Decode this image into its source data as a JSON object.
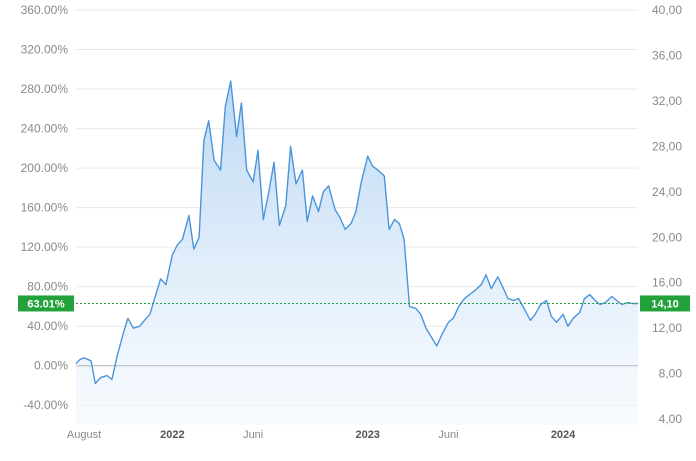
{
  "colors": {
    "line": "#4a95dc",
    "area_top": "#b8d6f3",
    "area_bottom": "#f3f8fe",
    "grid": "#e9e9e9",
    "zero_line": "#b5b5b5",
    "current_badge": "#23a13a",
    "current_line": "#23a13a"
  },
  "chart_data": {
    "type": "area",
    "grid": true,
    "y_left": {
      "unit": "percent",
      "range": [
        -60,
        360
      ],
      "ticks": [
        -40,
        0,
        40,
        80,
        120,
        160,
        200,
        240,
        280,
        320,
        360
      ],
      "tick_labels": [
        "-40.00%",
        "0.00%",
        "40.00%",
        "80.00%",
        "120.00%",
        "160.00%",
        "200.00%",
        "240.00%",
        "280.00%",
        "320.00%",
        "360.00%"
      ]
    },
    "y_right": {
      "range": [
        3.48,
        40.0
      ],
      "ticks": [
        4,
        8,
        12,
        16,
        20,
        24,
        28,
        32,
        36,
        40
      ],
      "tick_labels": [
        "4,00",
        "8,00",
        "12,00",
        "16,00",
        "20,00",
        "24,00",
        "28,00",
        "32,00",
        "36,00",
        "40,00"
      ]
    },
    "x_range": [
      "2021-07-05",
      "2024-05-20"
    ],
    "x_ticks": [
      {
        "date": "2021-07-20",
        "label": "August",
        "strong": false
      },
      {
        "date": "2022-01-01",
        "label": "2022",
        "strong": true
      },
      {
        "date": "2022-06-01",
        "label": "Juni",
        "strong": false
      },
      {
        "date": "2023-01-01",
        "label": "2023",
        "strong": true
      },
      {
        "date": "2023-06-01",
        "label": "Juni",
        "strong": false
      },
      {
        "date": "2024-01-01",
        "label": "2024",
        "strong": true
      }
    ],
    "current": {
      "percent": 63.01,
      "price": 14.1,
      "left_label": "63.01%",
      "right_label": "14,10"
    },
    "series": [
      {
        "x": [
          "2021-07-05",
          "2021-07-12",
          "2021-07-20",
          "2021-08-02",
          "2021-08-10",
          "2021-08-20",
          "2021-09-01",
          "2021-09-10",
          "2021-09-20",
          "2021-10-01",
          "2021-10-10",
          "2021-10-20",
          "2021-11-01",
          "2021-11-10",
          "2021-11-20",
          "2021-12-01",
          "2021-12-10",
          "2021-12-20",
          "2022-01-01",
          "2022-01-10",
          "2022-01-20",
          "2022-02-01",
          "2022-02-10",
          "2022-02-20",
          "2022-03-01",
          "2022-03-10",
          "2022-03-20",
          "2022-04-01",
          "2022-04-10",
          "2022-04-20",
          "2022-05-01",
          "2022-05-10",
          "2022-05-20",
          "2022-06-01",
          "2022-06-10",
          "2022-06-20",
          "2022-07-01",
          "2022-07-10",
          "2022-07-20",
          "2022-08-01",
          "2022-08-10",
          "2022-08-20",
          "2022-09-01",
          "2022-09-10",
          "2022-09-20",
          "2022-10-01",
          "2022-10-10",
          "2022-10-20",
          "2022-11-01",
          "2022-11-10",
          "2022-11-20",
          "2022-12-01",
          "2022-12-10",
          "2022-12-20",
          "2023-01-01",
          "2023-01-10",
          "2023-01-20",
          "2023-02-01",
          "2023-02-10",
          "2023-02-20",
          "2023-03-01",
          "2023-03-10",
          "2023-03-20",
          "2023-04-01",
          "2023-04-10",
          "2023-04-20",
          "2023-05-01",
          "2023-05-10",
          "2023-05-20",
          "2023-06-01",
          "2023-06-10",
          "2023-06-20",
          "2023-07-01",
          "2023-07-10",
          "2023-07-20",
          "2023-08-01",
          "2023-08-10",
          "2023-08-20",
          "2023-09-01",
          "2023-09-10",
          "2023-09-20",
          "2023-10-01",
          "2023-10-10",
          "2023-10-20",
          "2023-11-01",
          "2023-11-10",
          "2023-11-20",
          "2023-12-01",
          "2023-12-10",
          "2023-12-20",
          "2024-01-01",
          "2024-01-10",
          "2024-01-20",
          "2024-02-01",
          "2024-02-10",
          "2024-02-20",
          "2024-03-01",
          "2024-03-10",
          "2024-03-20",
          "2024-04-01",
          "2024-04-10",
          "2024-04-20",
          "2024-05-01",
          "2024-05-10",
          "2024-05-20"
        ],
        "y": [
          2,
          6,
          8,
          5,
          -18,
          -12,
          -10,
          -14,
          10,
          32,
          48,
          38,
          40,
          46,
          52,
          72,
          88,
          82,
          112,
          122,
          128,
          152,
          118,
          130,
          228,
          248,
          208,
          198,
          262,
          288,
          232,
          266,
          198,
          186,
          218,
          148,
          178,
          206,
          142,
          162,
          222,
          184,
          198,
          146,
          172,
          156,
          176,
          182,
          158,
          150,
          138,
          144,
          156,
          186,
          212,
          202,
          198,
          192,
          138,
          148,
          144,
          128,
          60,
          58,
          52,
          38,
          28,
          20,
          32,
          44,
          48,
          60,
          68,
          72,
          76,
          82,
          92,
          78,
          90,
          80,
          68,
          66,
          68,
          58,
          46,
          52,
          62,
          66,
          50,
          44,
          52,
          40,
          48,
          54,
          68,
          72,
          66,
          62,
          64,
          70,
          66,
          62,
          64,
          63,
          63
        ]
      }
    ]
  }
}
